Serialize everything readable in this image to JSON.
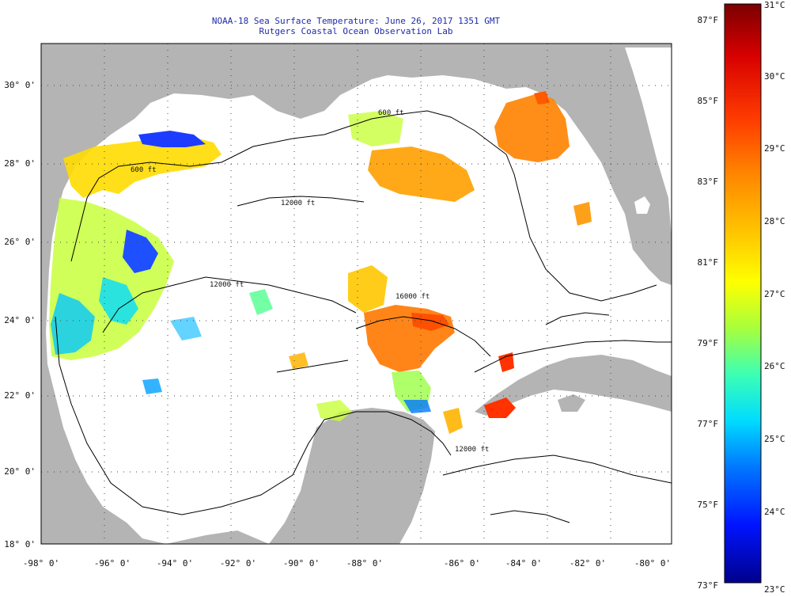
{
  "title": "NOAA-18 Sea Surface Temperature:  June 26, 2017 1351 GMT",
  "subtitle": "Rutgers Coastal Ocean Observation Lab",
  "lat_ticks": [
    "30° 0'",
    "28° 0'",
    "26° 0'",
    "24° 0'",
    "22° 0'",
    "20° 0'",
    "18° 0'"
  ],
  "lon_ticks": [
    "-98° 0'",
    "-96° 0'",
    "-94° 0'",
    "-92° 0'",
    "-90° 0'",
    "-88° 0'",
    "-86° 0'",
    "-84° 0'",
    "-82° 0'",
    "-80° 0'"
  ],
  "contour_labels": [
    "600 ft",
    "600 ft",
    "12000 ft",
    "12000 ft",
    "12000 ft",
    "16000 ft"
  ],
  "colorbar": {
    "fahrenheit": [
      "87°F",
      "85°F",
      "83°F",
      "81°F",
      "79°F",
      "77°F",
      "75°F",
      "73°F"
    ],
    "celsius": [
      "31°C",
      "30°C",
      "29°C",
      "28°C",
      "27°C",
      "26°C",
      "25°C",
      "24°C",
      "23°C"
    ],
    "colors": [
      "#7a0000",
      "#d80000",
      "#ff3c00",
      "#ff8a00",
      "#ffc800",
      "#ffff00",
      "#a8ff3c",
      "#3cffb4",
      "#00dcff",
      "#0078ff",
      "#0014ff",
      "#00008c"
    ]
  },
  "land_color": "#b4b4b4",
  "water_color": "#ffffff"
}
